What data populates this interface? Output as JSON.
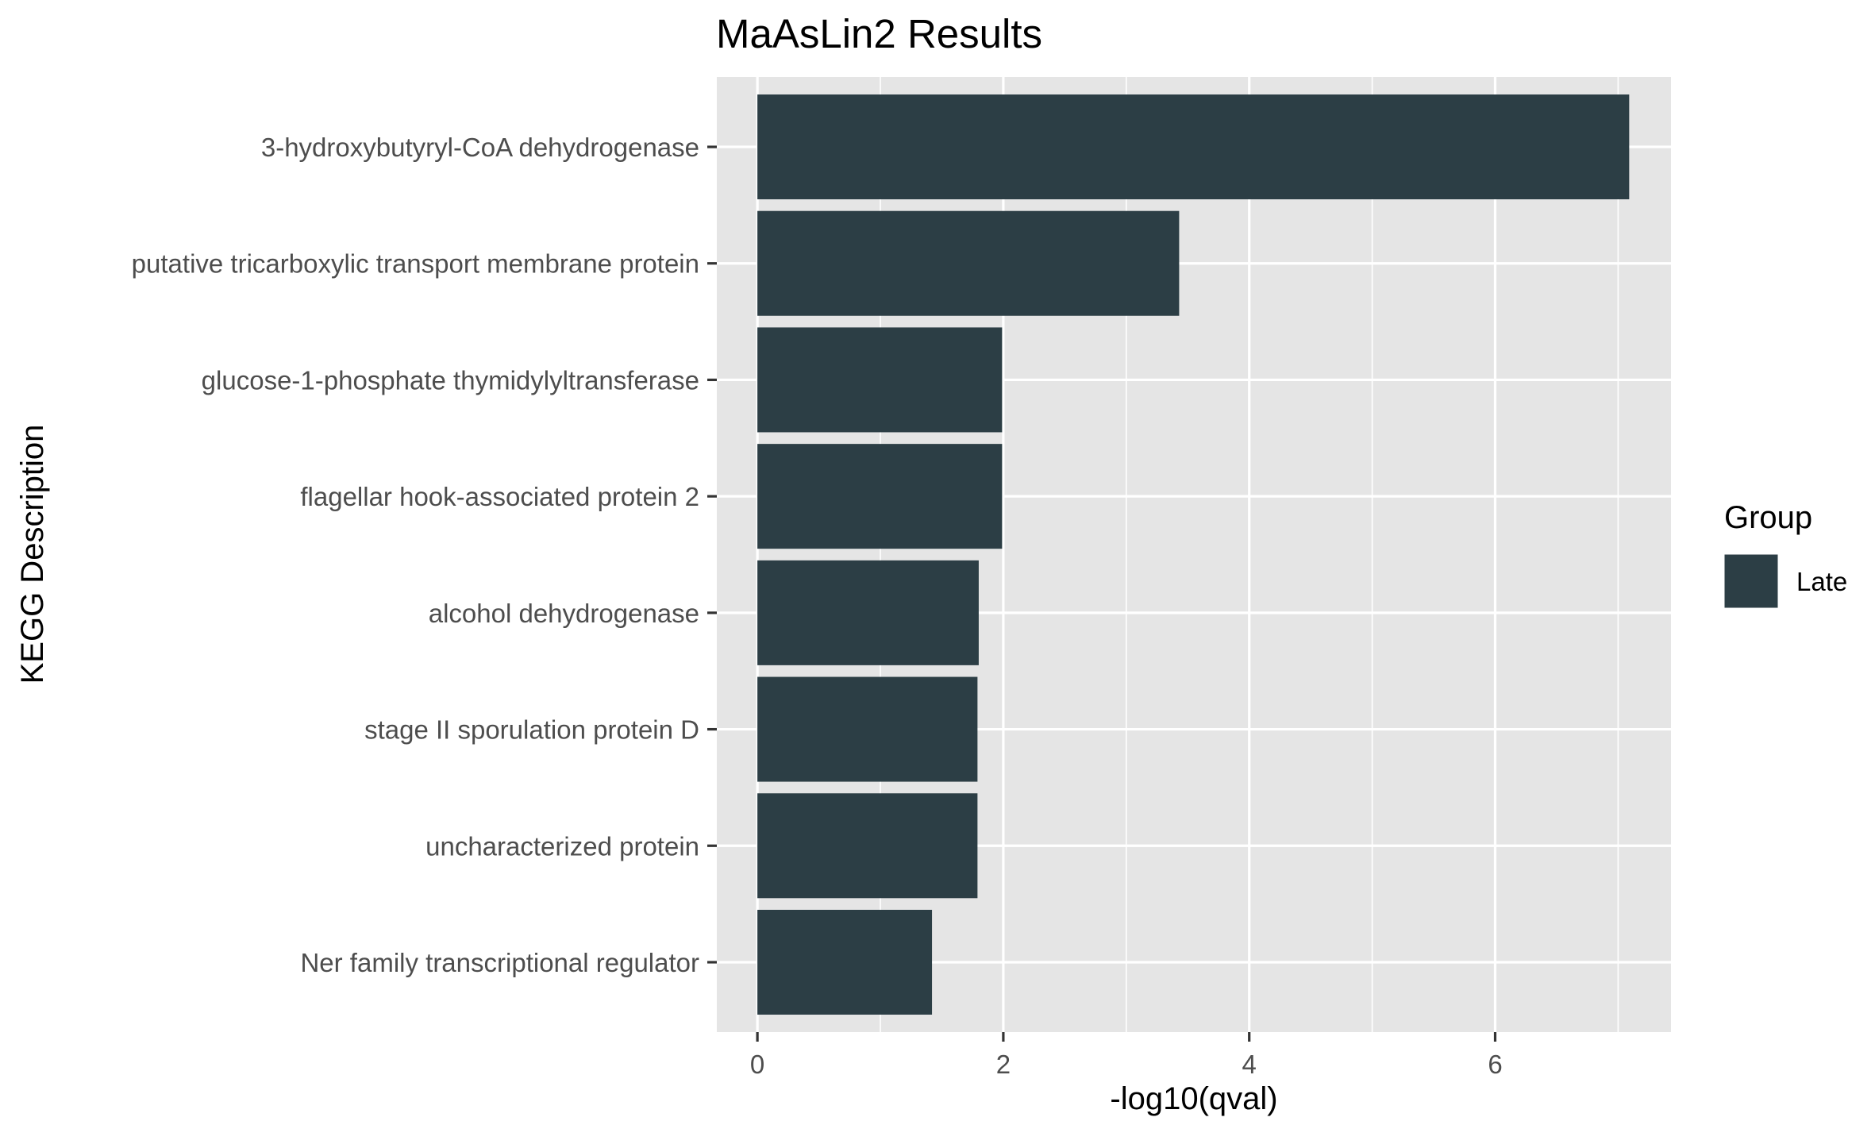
{
  "chart_data": {
    "type": "bar",
    "orientation": "horizontal",
    "title": "MaAsLin2 Results",
    "xlabel": "-log10(qval)",
    "ylabel": "KEGG Description",
    "categories": [
      "3-hydroxybutyryl-CoA dehydrogenase",
      "putative tricarboxylic transport membrane protein",
      "glucose-1-phosphate thymidylyltransferase",
      "flagellar hook-associated protein 2",
      "alcohol dehydrogenase",
      "stage II sporulation protein D",
      "uncharacterized protein",
      "Ner family transcriptional regulator"
    ],
    "series": [
      {
        "name": "Late",
        "values": [
          7.09,
          3.43,
          1.99,
          1.99,
          1.8,
          1.79,
          1.79,
          1.42
        ],
        "color": "#2c3e45"
      }
    ],
    "xlim": [
      -0.33,
      7.43
    ],
    "xticks": [
      "0",
      "2",
      "4",
      "6"
    ],
    "grid": true,
    "panel_background": "#e5e5e5",
    "legend": {
      "title": "Group",
      "position": "right",
      "entries": [
        "Late"
      ]
    }
  }
}
